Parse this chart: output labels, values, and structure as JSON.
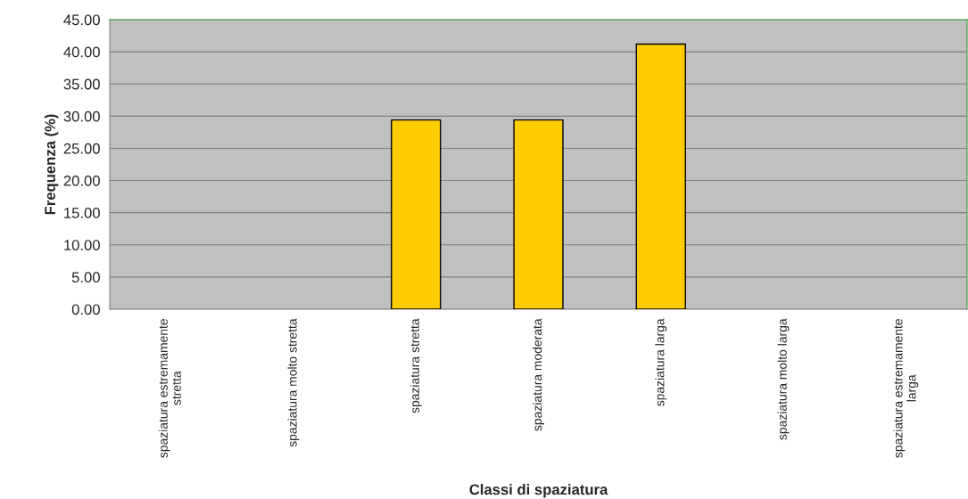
{
  "chart_data": {
    "type": "bar",
    "xlabel": "Classi di spaziatura",
    "ylabel": "Frequenza (%)",
    "categories": [
      "spaziatura estremamente\nstretta",
      "spaziatura molto stretta",
      "spaziatura stretta",
      "spaziatura moderata",
      "spaziatura larga",
      "spaziatura molto larga",
      "spaziatura estremamente\nlarga"
    ],
    "values": [
      0,
      0,
      29.4,
      29.4,
      41.2,
      0,
      0
    ],
    "color": "#ffcc00",
    "ylim": [
      0,
      45
    ],
    "yticks": [
      {
        "value": 0,
        "label": "0.00"
      },
      {
        "value": 5,
        "label": "5.00"
      },
      {
        "value": 10,
        "label": "10.00"
      },
      {
        "value": 15,
        "label": "15.00"
      },
      {
        "value": 20,
        "label": "20.00"
      },
      {
        "value": 25,
        "label": "25.00"
      },
      {
        "value": 30,
        "label": "30.00"
      },
      {
        "value": 35,
        "label": "35.00"
      },
      {
        "value": 40,
        "label": "40.00"
      },
      {
        "value": 45,
        "label": "45.00"
      }
    ],
    "grid": "y",
    "legend": false
  }
}
